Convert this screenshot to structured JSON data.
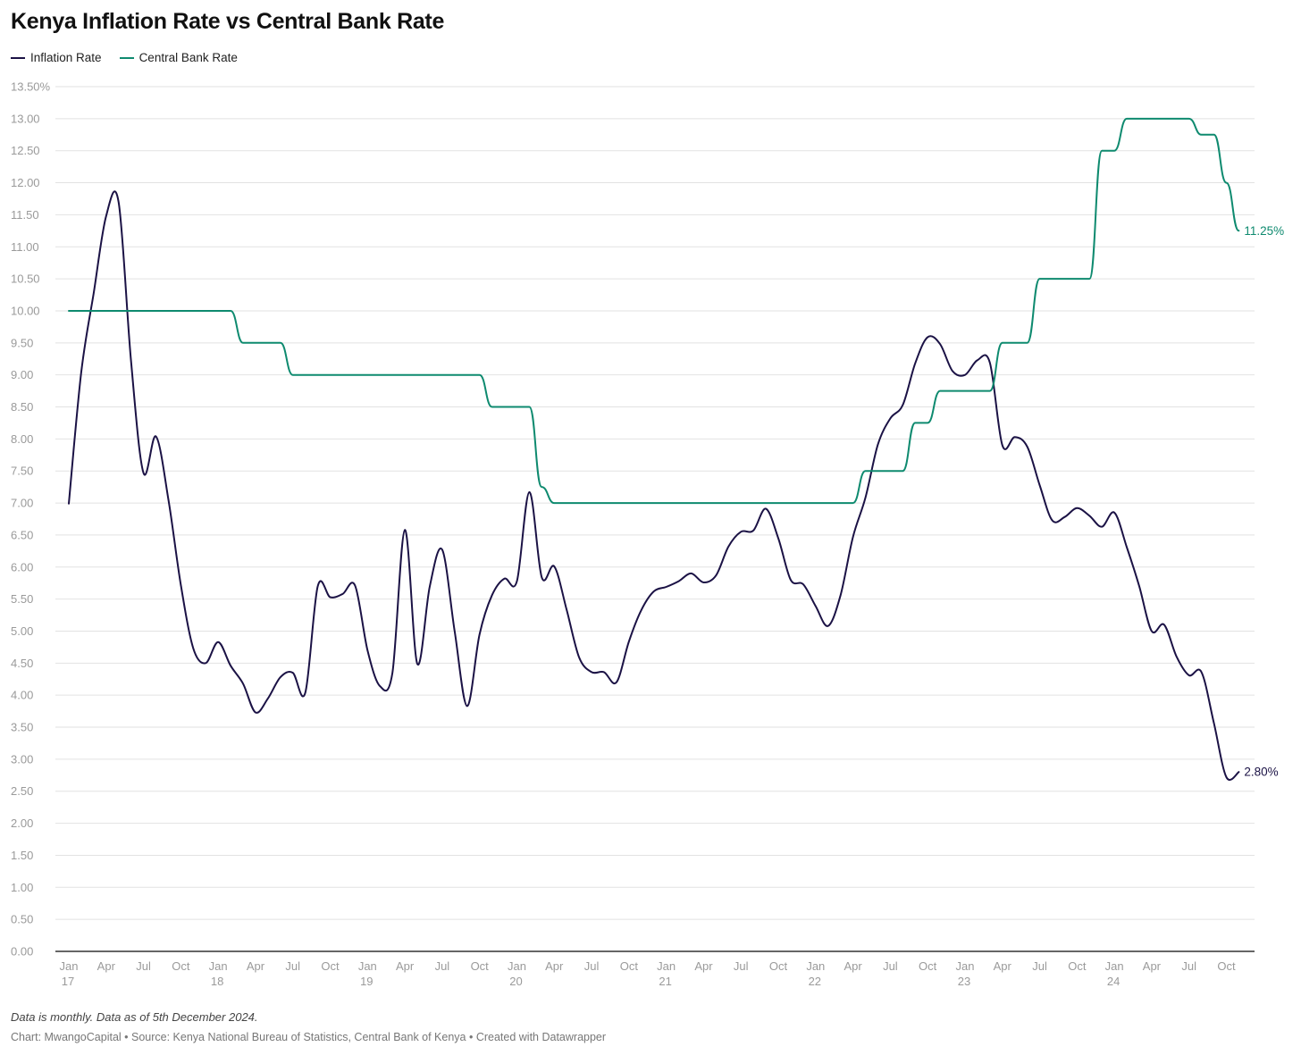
{
  "chart_data": {
    "type": "line",
    "title": "Kenya Inflation Rate vs Central Bank Rate",
    "y_axis": {
      "ylim": [
        0,
        13.5
      ],
      "ticks": [
        "0.00",
        "0.50",
        "1.00",
        "1.50",
        "2.00",
        "2.50",
        "3.00",
        "3.50",
        "4.00",
        "4.50",
        "5.00",
        "5.50",
        "6.00",
        "6.50",
        "7.00",
        "7.50",
        "8.00",
        "8.50",
        "9.00",
        "9.50",
        "10.00",
        "10.50",
        "11.00",
        "11.50",
        "12.00",
        "12.50",
        "13.00",
        "13.50%"
      ],
      "grid": true
    },
    "x_axis": {
      "start": "2017-01",
      "end": "2024-11",
      "ticks": [
        {
          "month": "2017-01",
          "label": "Jan",
          "year": "17"
        },
        {
          "month": "2017-04",
          "label": "Apr"
        },
        {
          "month": "2017-07",
          "label": "Jul"
        },
        {
          "month": "2017-10",
          "label": "Oct"
        },
        {
          "month": "2018-01",
          "label": "Jan",
          "year": "18"
        },
        {
          "month": "2018-04",
          "label": "Apr"
        },
        {
          "month": "2018-07",
          "label": "Jul"
        },
        {
          "month": "2018-10",
          "label": "Oct"
        },
        {
          "month": "2019-01",
          "label": "Jan",
          "year": "19"
        },
        {
          "month": "2019-04",
          "label": "Apr"
        },
        {
          "month": "2019-07",
          "label": "Jul"
        },
        {
          "month": "2019-10",
          "label": "Oct"
        },
        {
          "month": "2020-01",
          "label": "Jan",
          "year": "20"
        },
        {
          "month": "2020-04",
          "label": "Apr"
        },
        {
          "month": "2020-07",
          "label": "Jul"
        },
        {
          "month": "2020-10",
          "label": "Oct"
        },
        {
          "month": "2021-01",
          "label": "Jan",
          "year": "21"
        },
        {
          "month": "2021-04",
          "label": "Apr"
        },
        {
          "month": "2021-07",
          "label": "Jul"
        },
        {
          "month": "2021-10",
          "label": "Oct"
        },
        {
          "month": "2022-01",
          "label": "Jan",
          "year": "22"
        },
        {
          "month": "2022-04",
          "label": "Apr"
        },
        {
          "month": "2022-07",
          "label": "Jul"
        },
        {
          "month": "2022-10",
          "label": "Oct"
        },
        {
          "month": "2023-01",
          "label": "Jan",
          "year": "23"
        },
        {
          "month": "2023-04",
          "label": "Apr"
        },
        {
          "month": "2023-07",
          "label": "Jul"
        },
        {
          "month": "2023-10",
          "label": "Oct"
        },
        {
          "month": "2024-01",
          "label": "Jan",
          "year": "24"
        },
        {
          "month": "2024-04",
          "label": "Apr"
        },
        {
          "month": "2024-07",
          "label": "Jul"
        },
        {
          "month": "2024-10",
          "label": "Oct"
        }
      ]
    },
    "series": [
      {
        "name": "Inflation Rate",
        "color": "#1b1245",
        "end_label": "2.80%",
        "points": [
          [
            "2017-01",
            6.99
          ],
          [
            "2017-02",
            9.04
          ],
          [
            "2017-03",
            10.28
          ],
          [
            "2017-04",
            11.48
          ],
          [
            "2017-05",
            11.7
          ],
          [
            "2017-06",
            9.21
          ],
          [
            "2017-07",
            7.47
          ],
          [
            "2017-08",
            8.04
          ],
          [
            "2017-09",
            7.06
          ],
          [
            "2017-10",
            5.72
          ],
          [
            "2017-11",
            4.73
          ],
          [
            "2017-12",
            4.5
          ],
          [
            "2018-01",
            4.83
          ],
          [
            "2018-02",
            4.46
          ],
          [
            "2018-03",
            4.18
          ],
          [
            "2018-04",
            3.73
          ],
          [
            "2018-05",
            3.95
          ],
          [
            "2018-06",
            4.28
          ],
          [
            "2018-07",
            4.35
          ],
          [
            "2018-08",
            4.04
          ],
          [
            "2018-09",
            5.7
          ],
          [
            "2018-10",
            5.53
          ],
          [
            "2018-11",
            5.58
          ],
          [
            "2018-12",
            5.71
          ],
          [
            "2019-01",
            4.7
          ],
          [
            "2019-02",
            4.14
          ],
          [
            "2019-03",
            4.35
          ],
          [
            "2019-04",
            6.58
          ],
          [
            "2019-05",
            4.49
          ],
          [
            "2019-06",
            5.7
          ],
          [
            "2019-07",
            6.27
          ],
          [
            "2019-08",
            5.0
          ],
          [
            "2019-09",
            3.83
          ],
          [
            "2019-10",
            4.95
          ],
          [
            "2019-11",
            5.56
          ],
          [
            "2019-12",
            5.82
          ],
          [
            "2020-01",
            5.78
          ],
          [
            "2020-02",
            7.17
          ],
          [
            "2020-03",
            5.84
          ],
          [
            "2020-04",
            6.01
          ],
          [
            "2020-05",
            5.33
          ],
          [
            "2020-06",
            4.59
          ],
          [
            "2020-07",
            4.36
          ],
          [
            "2020-08",
            4.36
          ],
          [
            "2020-09",
            4.2
          ],
          [
            "2020-10",
            4.84
          ],
          [
            "2020-11",
            5.33
          ],
          [
            "2020-12",
            5.62
          ],
          [
            "2021-01",
            5.69
          ],
          [
            "2021-02",
            5.78
          ],
          [
            "2021-03",
            5.9
          ],
          [
            "2021-04",
            5.76
          ],
          [
            "2021-05",
            5.87
          ],
          [
            "2021-06",
            6.32
          ],
          [
            "2021-07",
            6.55
          ],
          [
            "2021-08",
            6.57
          ],
          [
            "2021-09",
            6.91
          ],
          [
            "2021-10",
            6.45
          ],
          [
            "2021-11",
            5.8
          ],
          [
            "2021-12",
            5.73
          ],
          [
            "2022-01",
            5.39
          ],
          [
            "2022-02",
            5.08
          ],
          [
            "2022-03",
            5.56
          ],
          [
            "2022-04",
            6.47
          ],
          [
            "2022-05",
            7.08
          ],
          [
            "2022-06",
            7.91
          ],
          [
            "2022-07",
            8.32
          ],
          [
            "2022-08",
            8.53
          ],
          [
            "2022-09",
            9.18
          ],
          [
            "2022-10",
            9.59
          ],
          [
            "2022-11",
            9.48
          ],
          [
            "2022-12",
            9.06
          ],
          [
            "2023-01",
            9.0
          ],
          [
            "2023-02",
            9.23
          ],
          [
            "2023-03",
            9.19
          ],
          [
            "2023-04",
            7.9
          ],
          [
            "2023-05",
            8.03
          ],
          [
            "2023-06",
            7.88
          ],
          [
            "2023-07",
            7.28
          ],
          [
            "2023-08",
            6.73
          ],
          [
            "2023-09",
            6.78
          ],
          [
            "2023-10",
            6.92
          ],
          [
            "2023-11",
            6.8
          ],
          [
            "2023-12",
            6.63
          ],
          [
            "2024-01",
            6.85
          ],
          [
            "2024-02",
            6.31
          ],
          [
            "2024-03",
            5.7
          ],
          [
            "2024-04",
            5.0
          ],
          [
            "2024-05",
            5.1
          ],
          [
            "2024-06",
            4.6
          ],
          [
            "2024-07",
            4.31
          ],
          [
            "2024-08",
            4.36
          ],
          [
            "2024-09",
            3.56
          ],
          [
            "2024-10",
            2.72
          ],
          [
            "2024-11",
            2.8
          ]
        ]
      },
      {
        "name": "Central Bank Rate",
        "color": "#0e8a6f",
        "end_label": "11.25%",
        "points": [
          [
            "2017-01",
            10.0
          ],
          [
            "2017-02",
            10.0
          ],
          [
            "2017-03",
            10.0
          ],
          [
            "2017-04",
            10.0
          ],
          [
            "2017-05",
            10.0
          ],
          [
            "2017-06",
            10.0
          ],
          [
            "2017-07",
            10.0
          ],
          [
            "2017-08",
            10.0
          ],
          [
            "2017-09",
            10.0
          ],
          [
            "2017-10",
            10.0
          ],
          [
            "2017-11",
            10.0
          ],
          [
            "2017-12",
            10.0
          ],
          [
            "2018-01",
            10.0
          ],
          [
            "2018-02",
            10.0
          ],
          [
            "2018-03",
            9.5
          ],
          [
            "2018-04",
            9.5
          ],
          [
            "2018-05",
            9.5
          ],
          [
            "2018-06",
            9.5
          ],
          [
            "2018-07",
            9.0
          ],
          [
            "2018-08",
            9.0
          ],
          [
            "2018-09",
            9.0
          ],
          [
            "2018-10",
            9.0
          ],
          [
            "2018-11",
            9.0
          ],
          [
            "2018-12",
            9.0
          ],
          [
            "2019-01",
            9.0
          ],
          [
            "2019-02",
            9.0
          ],
          [
            "2019-03",
            9.0
          ],
          [
            "2019-04",
            9.0
          ],
          [
            "2019-05",
            9.0
          ],
          [
            "2019-06",
            9.0
          ],
          [
            "2019-07",
            9.0
          ],
          [
            "2019-08",
            9.0
          ],
          [
            "2019-09",
            9.0
          ],
          [
            "2019-10",
            9.0
          ],
          [
            "2019-11",
            8.5
          ],
          [
            "2019-12",
            8.5
          ],
          [
            "2020-01",
            8.5
          ],
          [
            "2020-02",
            8.5
          ],
          [
            "2020-03",
            7.25
          ],
          [
            "2020-04",
            7.0
          ],
          [
            "2020-05",
            7.0
          ],
          [
            "2020-06",
            7.0
          ],
          [
            "2020-07",
            7.0
          ],
          [
            "2020-08",
            7.0
          ],
          [
            "2020-09",
            7.0
          ],
          [
            "2020-10",
            7.0
          ],
          [
            "2020-11",
            7.0
          ],
          [
            "2020-12",
            7.0
          ],
          [
            "2021-01",
            7.0
          ],
          [
            "2021-02",
            7.0
          ],
          [
            "2021-03",
            7.0
          ],
          [
            "2021-04",
            7.0
          ],
          [
            "2021-05",
            7.0
          ],
          [
            "2021-06",
            7.0
          ],
          [
            "2021-07",
            7.0
          ],
          [
            "2021-08",
            7.0
          ],
          [
            "2021-09",
            7.0
          ],
          [
            "2021-10",
            7.0
          ],
          [
            "2021-11",
            7.0
          ],
          [
            "2021-12",
            7.0
          ],
          [
            "2022-01",
            7.0
          ],
          [
            "2022-02",
            7.0
          ],
          [
            "2022-03",
            7.0
          ],
          [
            "2022-04",
            7.0
          ],
          [
            "2022-05",
            7.5
          ],
          [
            "2022-06",
            7.5
          ],
          [
            "2022-07",
            7.5
          ],
          [
            "2022-08",
            7.5
          ],
          [
            "2022-09",
            8.25
          ],
          [
            "2022-10",
            8.25
          ],
          [
            "2022-11",
            8.75
          ],
          [
            "2022-12",
            8.75
          ],
          [
            "2023-01",
            8.75
          ],
          [
            "2023-02",
            8.75
          ],
          [
            "2023-03",
            8.75
          ],
          [
            "2023-04",
            9.5
          ],
          [
            "2023-05",
            9.5
          ],
          [
            "2023-06",
            9.5
          ],
          [
            "2023-07",
            10.5
          ],
          [
            "2023-08",
            10.5
          ],
          [
            "2023-09",
            10.5
          ],
          [
            "2023-10",
            10.5
          ],
          [
            "2023-11",
            10.5
          ],
          [
            "2023-12",
            12.5
          ],
          [
            "2024-01",
            12.5
          ],
          [
            "2024-02",
            13.0
          ],
          [
            "2024-03",
            13.0
          ],
          [
            "2024-04",
            13.0
          ],
          [
            "2024-05",
            13.0
          ],
          [
            "2024-06",
            13.0
          ],
          [
            "2024-07",
            13.0
          ],
          [
            "2024-08",
            12.75
          ],
          [
            "2024-09",
            12.75
          ],
          [
            "2024-10",
            12.0
          ],
          [
            "2024-11",
            11.25
          ]
        ]
      }
    ],
    "legend_placement": "top-left"
  },
  "footer": {
    "note": "Data is monthly. Data as of 5th December 2024.",
    "credit": "Chart: MwangoCapital • Source: Kenya National Bureau of Statistics, Central Bank of Kenya • Created with Datawrapper"
  }
}
